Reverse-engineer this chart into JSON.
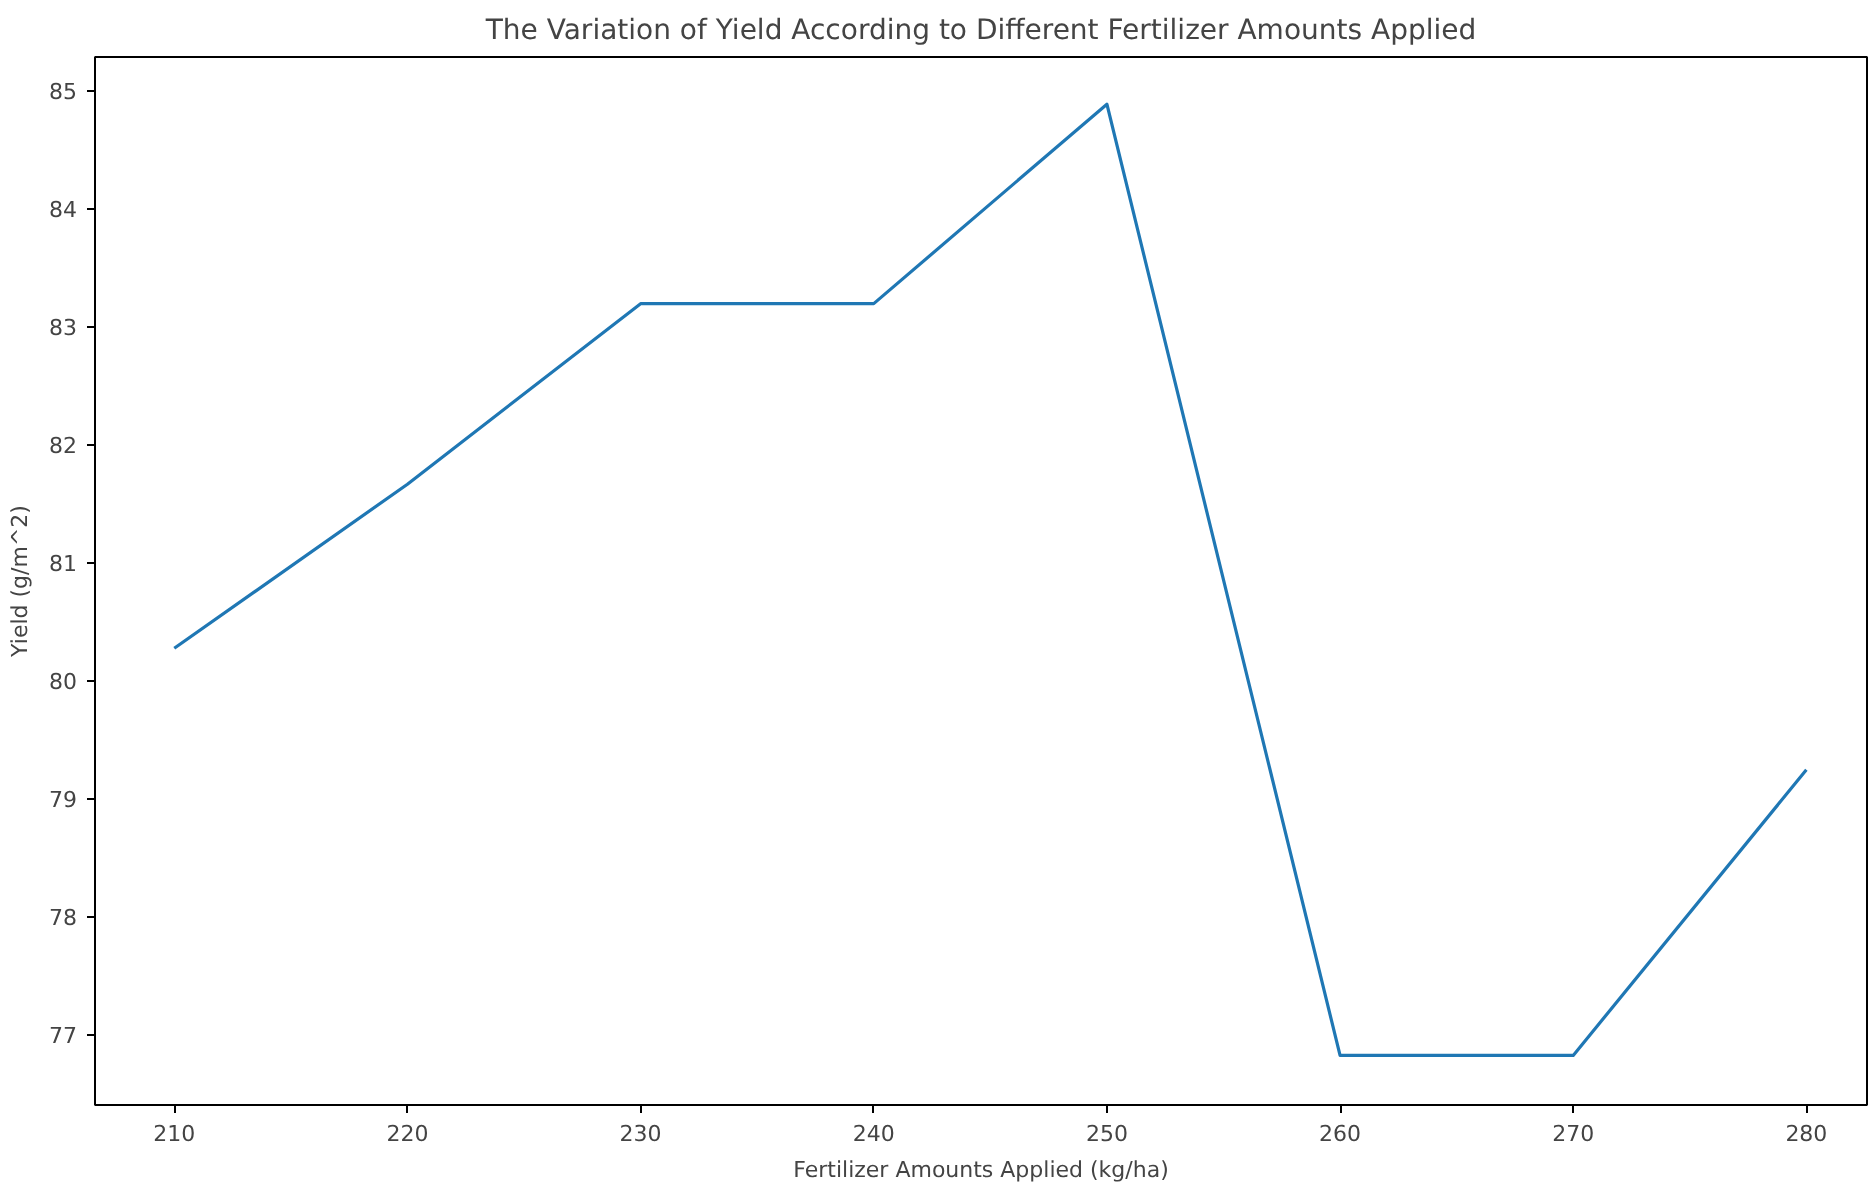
{
  "chart_data": {
    "type": "line",
    "title": "The Variation of Yield According to Different Fertilizer Amounts Applied",
    "xlabel": "Fertilizer Amounts Applied (kg/ha)",
    "ylabel": "Yield (g/m^2)",
    "x": [
      210,
      220,
      230,
      240,
      250,
      260,
      270,
      280
    ],
    "series": [
      {
        "color": "#1f77b4",
        "values": [
          80.27,
          81.66,
          83.19,
          83.19,
          84.88,
          76.82,
          76.82,
          79.24
        ]
      }
    ],
    "xlim": [
      206.6,
      282.6
    ],
    "ylim": [
      76.4,
      85.28
    ],
    "xticks": [
      210,
      220,
      230,
      240,
      250,
      260,
      270,
      280
    ],
    "yticks": [
      77,
      78,
      79,
      80,
      81,
      82,
      83,
      84,
      85
    ],
    "grid": false,
    "line_style": "solid"
  }
}
